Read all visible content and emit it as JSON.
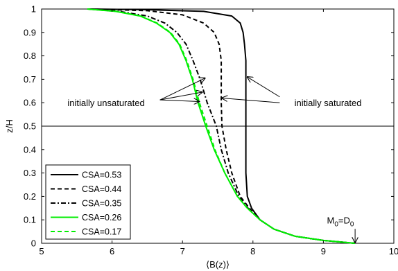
{
  "chart_data": {
    "type": "line",
    "xlabel": "⟨B(z)⟩",
    "ylabel": "z/H",
    "xlim": [
      5,
      10
    ],
    "ylim": [
      0,
      1
    ],
    "xticks": [
      "5",
      "6",
      "7",
      "8",
      "9",
      "10"
    ],
    "yticks": [
      "0",
      "0.1",
      "0.2",
      "0.3",
      "0.4",
      "0.5",
      "0.6",
      "0.7",
      "0.8",
      "0.9",
      "1"
    ],
    "grid": false,
    "legend_position": "bottom-left",
    "reference_line_y": 0.5,
    "series": [
      {
        "name": "CSA=0.53",
        "color": "#000000",
        "dash": "solid",
        "points": [
          [
            9.45,
            0.0
          ],
          [
            9.0,
            0.012
          ],
          [
            8.6,
            0.03
          ],
          [
            8.3,
            0.06
          ],
          [
            8.1,
            0.1
          ],
          [
            7.98,
            0.15
          ],
          [
            7.92,
            0.2
          ],
          [
            7.9,
            0.3
          ],
          [
            7.9,
            0.4
          ],
          [
            7.9,
            0.5
          ],
          [
            7.9,
            0.6
          ],
          [
            7.9,
            0.7
          ],
          [
            7.9,
            0.78
          ],
          [
            7.88,
            0.85
          ],
          [
            7.86,
            0.9
          ],
          [
            7.82,
            0.94
          ],
          [
            7.7,
            0.97
          ],
          [
            7.3,
            0.99
          ],
          [
            6.5,
            0.997
          ],
          [
            5.65,
            1.0
          ]
        ]
      },
      {
        "name": "CSA=0.44",
        "color": "#000000",
        "dash": "dashed",
        "points": [
          [
            9.45,
            0.0
          ],
          [
            9.0,
            0.012
          ],
          [
            8.6,
            0.03
          ],
          [
            8.3,
            0.06
          ],
          [
            8.1,
            0.1
          ],
          [
            7.95,
            0.15
          ],
          [
            7.82,
            0.2
          ],
          [
            7.7,
            0.3
          ],
          [
            7.62,
            0.4
          ],
          [
            7.56,
            0.5
          ],
          [
            7.55,
            0.6
          ],
          [
            7.55,
            0.7
          ],
          [
            7.55,
            0.78
          ],
          [
            7.52,
            0.85
          ],
          [
            7.45,
            0.9
          ],
          [
            7.3,
            0.94
          ],
          [
            7.0,
            0.975
          ],
          [
            6.5,
            0.993
          ],
          [
            5.65,
            1.0
          ]
        ]
      },
      {
        "name": "CSA=0.35",
        "color": "#000000",
        "dash": "dashdot",
        "points": [
          [
            9.45,
            0.0
          ],
          [
            9.0,
            0.012
          ],
          [
            8.6,
            0.03
          ],
          [
            8.3,
            0.06
          ],
          [
            8.1,
            0.1
          ],
          [
            7.93,
            0.15
          ],
          [
            7.8,
            0.2
          ],
          [
            7.65,
            0.3
          ],
          [
            7.55,
            0.4
          ],
          [
            7.48,
            0.5
          ],
          [
            7.35,
            0.6
          ],
          [
            7.25,
            0.7
          ],
          [
            7.15,
            0.78
          ],
          [
            7.05,
            0.85
          ],
          [
            6.92,
            0.9
          ],
          [
            6.75,
            0.94
          ],
          [
            6.5,
            0.97
          ],
          [
            6.1,
            0.99
          ],
          [
            5.65,
            1.0
          ]
        ]
      },
      {
        "name": "CSA=0.26",
        "color": "#00ee00",
        "dash": "solid",
        "points": [
          [
            9.45,
            0.0
          ],
          [
            9.0,
            0.012
          ],
          [
            8.6,
            0.03
          ],
          [
            8.3,
            0.06
          ],
          [
            8.1,
            0.1
          ],
          [
            7.92,
            0.15
          ],
          [
            7.78,
            0.2
          ],
          [
            7.6,
            0.3
          ],
          [
            7.45,
            0.4
          ],
          [
            7.33,
            0.5
          ],
          [
            7.22,
            0.6
          ],
          [
            7.14,
            0.7
          ],
          [
            7.05,
            0.78
          ],
          [
            6.95,
            0.85
          ],
          [
            6.82,
            0.9
          ],
          [
            6.63,
            0.94
          ],
          [
            6.4,
            0.97
          ],
          [
            6.05,
            0.99
          ],
          [
            5.65,
            1.0
          ]
        ]
      },
      {
        "name": "CSA=0.17",
        "color": "#00ee00",
        "dash": "dashed",
        "points": [
          [
            9.45,
            0.0
          ],
          [
            9.0,
            0.012
          ],
          [
            8.6,
            0.03
          ],
          [
            8.3,
            0.06
          ],
          [
            8.1,
            0.1
          ],
          [
            7.92,
            0.15
          ],
          [
            7.78,
            0.2
          ],
          [
            7.6,
            0.3
          ],
          [
            7.46,
            0.4
          ],
          [
            7.35,
            0.5
          ],
          [
            7.24,
            0.6
          ],
          [
            7.15,
            0.7
          ],
          [
            7.06,
            0.78
          ],
          [
            6.96,
            0.85
          ],
          [
            6.83,
            0.9
          ],
          [
            6.64,
            0.94
          ],
          [
            6.41,
            0.97
          ],
          [
            6.06,
            0.99
          ],
          [
            5.65,
            1.0
          ]
        ]
      }
    ],
    "annotations": [
      {
        "id": "unsaturated",
        "text": "initially unsaturated",
        "anchor": [
          5.25,
          0.6
        ],
        "arrows_to": [
          [
            7.32,
            0.705
          ],
          [
            7.28,
            0.645
          ],
          [
            7.24,
            0.605
          ]
        ]
      },
      {
        "id": "saturated",
        "text": "initially saturated",
        "anchor": [
          8.55,
          0.6
        ],
        "arrows_to": [
          [
            7.92,
            0.71
          ],
          [
            7.56,
            0.62
          ]
        ]
      },
      {
        "id": "m0d0",
        "text_main": "M",
        "text_sub": "0",
        "text_eq": "=D",
        "text_sub2": "0",
        "anchor": [
          9.05,
          0.085
        ],
        "arrows_to": [
          [
            9.45,
            0.0
          ]
        ]
      }
    ]
  }
}
